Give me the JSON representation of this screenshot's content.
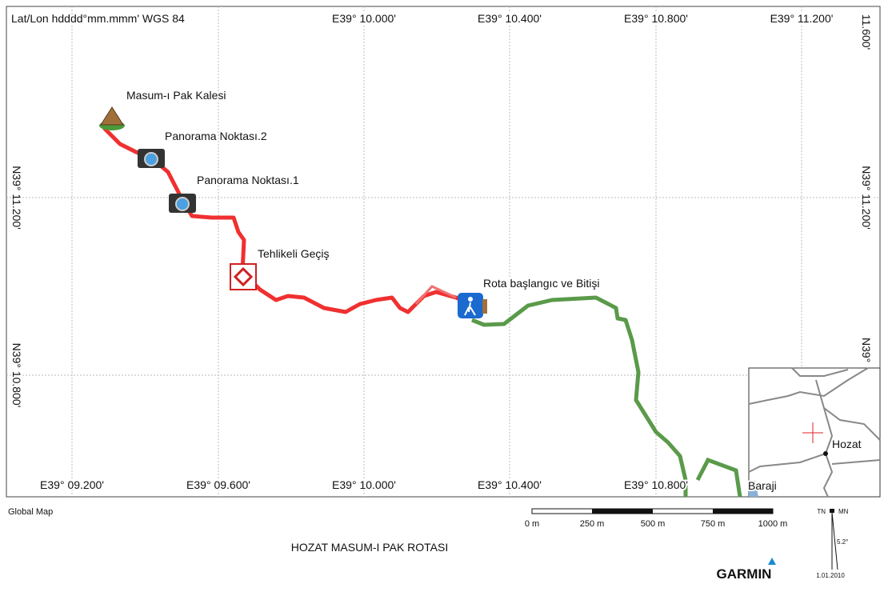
{
  "header": {
    "projection": "Lat/Lon hdddd°mm.mmm' WGS 84"
  },
  "grid_labels": {
    "top": [
      "E39° 10.000'",
      "E39° 10.400'",
      "E39° 10.800'",
      "E39° 11.200'"
    ],
    "bottom": [
      "E39° 09.200'",
      "E39° 09.600'",
      "E39° 10.000'",
      "E39° 10.400'",
      "E39° 10.800'"
    ],
    "left": [
      "N39° 11.200'",
      "N39° 10.800'"
    ],
    "right": [
      "11.600'",
      "N39° 11.200'",
      "N39°"
    ]
  },
  "waypoints": [
    "Masum-ı Pak Kalesi",
    "Panorama Noktası.2",
    "Panorama Noktası.1",
    "Tehlikeli Geçiş",
    "Rota başlangıc ve Bitişi"
  ],
  "inset": {
    "labels": [
      "Hozat",
      "Baraji"
    ]
  },
  "footer": {
    "source": "Global Map",
    "scale": [
      "0 m",
      "250 m",
      "500 m",
      "750 m",
      "1000 m"
    ],
    "title": "HOZAT MASUM-I PAK ROTASI",
    "brand": "GARMIN",
    "north": [
      "TN",
      "MN"
    ],
    "declination": "5.2°",
    "date": "1.01.2010"
  }
}
